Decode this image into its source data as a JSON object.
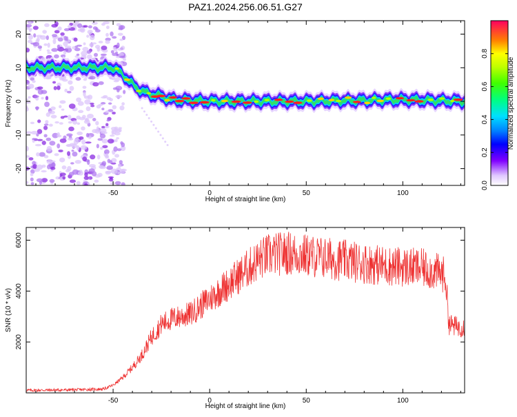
{
  "title": "PAZ1.2024.256.06.51.G27",
  "chart_data": [
    {
      "type": "heatmap",
      "xlabel": "Height of straight line (km)",
      "ylabel": "Frequency (Hz)",
      "xlim": [
        -95,
        132
      ],
      "ylim": [
        -25,
        24
      ],
      "x_ticks": [
        -50,
        0,
        50,
        100
      ],
      "y_ticks": [
        -20,
        -10,
        0,
        10,
        20
      ],
      "colorbar": {
        "label": "Normalized spectral amplitude",
        "range": [
          0,
          1
        ],
        "ticks": [
          0.0,
          0.2,
          0.4,
          0.6,
          0.8
        ]
      },
      "ridge": {
        "x": [
          -95,
          -50,
          -45,
          -40,
          -35,
          -30,
          -25,
          -20,
          0,
          50,
          100,
          132
        ],
        "y": [
          10,
          10,
          8,
          5,
          3,
          2,
          1.5,
          0.5,
          0,
          0,
          0.5,
          0
        ]
      },
      "noise_region_x": [
        -95,
        -50
      ]
    },
    {
      "type": "line",
      "xlabel": "Height of straight line (km)",
      "ylabel": "SNR (10 * v/v)",
      "xlim": [
        -95,
        132
      ],
      "ylim": [
        0,
        6500
      ],
      "x_ticks": [
        -50,
        0,
        50,
        100
      ],
      "y_ticks": [
        2000,
        4000,
        6000
      ],
      "color": "#ee3333",
      "series": [
        {
          "x": [
            -95,
            -70,
            -55,
            -50,
            -45,
            -40,
            -35,
            -30,
            -25,
            -20,
            -15,
            -10,
            -5,
            0,
            5,
            10,
            15,
            20,
            25,
            30,
            40,
            50,
            60,
            70,
            80,
            90,
            100,
            110,
            115,
            120,
            122,
            124,
            128,
            132
          ],
          "y": [
            100,
            120,
            150,
            300,
            600,
            1000,
            1500,
            2200,
            2700,
            2900,
            3000,
            3100,
            3400,
            3700,
            4000,
            4300,
            4600,
            4900,
            5200,
            5400,
            5500,
            5400,
            5300,
            5200,
            5100,
            5000,
            4950,
            4900,
            4800,
            4700,
            4600,
            2700,
            2600,
            2600
          ]
        }
      ]
    }
  ]
}
